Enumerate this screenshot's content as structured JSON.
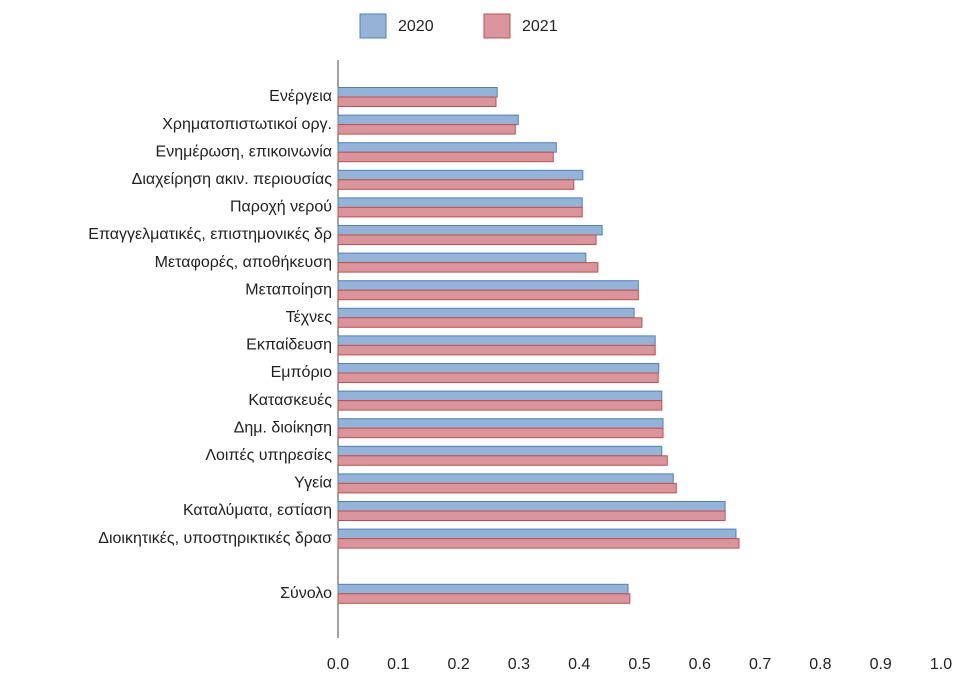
{
  "chart_data": {
    "type": "bar",
    "orientation": "horizontal",
    "categories": [
      "Ενέργεια",
      "Χρηματοπιστωτικοί οργ.",
      "Ενημέρωση, επικοινωνία",
      "Διαχείρηση ακιν. περιουσίας",
      "Παροχή νερού",
      "Επαγγελματικές, επιστημονικές δρ",
      "Μεταφορές, αποθήκευση",
      "Μεταποίηση",
      "Τέχνες",
      "Εκπαίδευση",
      "Εμπόριο",
      "Κατασκευές",
      "Δημ. διοίκηση",
      "Λοιπές υπηρεσίες",
      "Υγεία",
      "Καταλύματα, εστίαση",
      "Διοικητικές, υποστηρικτικές δρασ",
      null,
      "Σύνολο"
    ],
    "series": [
      {
        "name": "2020",
        "color": "#95b3d7",
        "edge": "#4f81bd",
        "values": [
          0.264,
          0.299,
          0.362,
          0.406,
          0.405,
          0.438,
          0.411,
          0.498,
          0.491,
          0.526,
          0.532,
          0.537,
          0.539,
          0.537,
          0.556,
          0.642,
          0.66,
          null,
          0.481
        ]
      },
      {
        "name": "2021",
        "color": "#d9959b",
        "edge": "#c0504d",
        "values": [
          0.262,
          0.294,
          0.357,
          0.391,
          0.405,
          0.428,
          0.431,
          0.498,
          0.504,
          0.526,
          0.531,
          0.537,
          0.539,
          0.546,
          0.561,
          0.642,
          0.665,
          null,
          0.484
        ]
      }
    ],
    "xlim": [
      0,
      1
    ],
    "xticks": [
      {
        "value": 0,
        "label": "0.0"
      },
      0.1,
      0.2,
      0.3,
      0.4,
      0.5,
      0.6,
      0.7,
      0.8,
      0.9,
      {
        "value": 1,
        "label": "1.0"
      }
    ],
    "legend": "top"
  }
}
